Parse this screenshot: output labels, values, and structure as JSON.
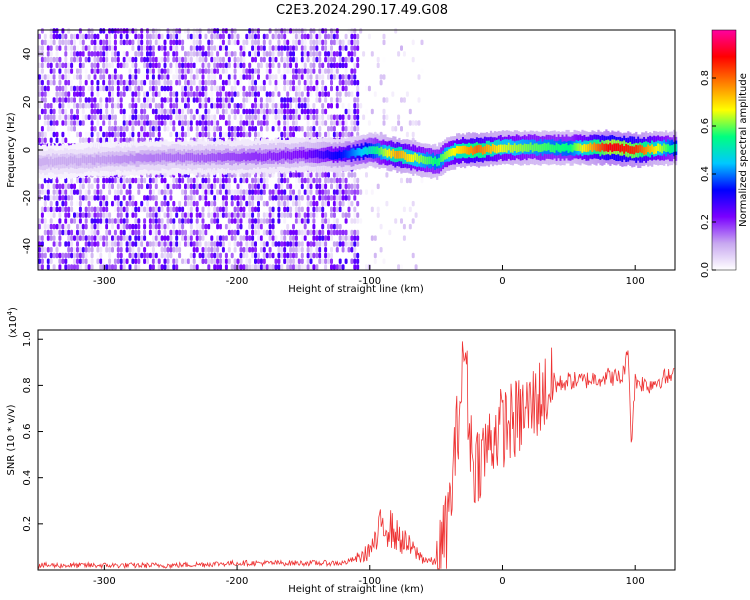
{
  "title": "C2E3.2024.290.17.49.G08",
  "chart_data": [
    {
      "type": "heatmap",
      "title": "C2E3.2024.290.17.49.G08",
      "xlabel": "Height of straight line (km)",
      "ylabel": "Frequency (Hz)",
      "xlim": [
        -350,
        130
      ],
      "ylim": [
        -50,
        50
      ],
      "x_ticks": [
        -300,
        -200,
        -100,
        0,
        100
      ],
      "y_ticks": [
        -40,
        -20,
        0,
        20,
        40
      ],
      "colorbar": {
        "label": "Normalized spectral amplitude",
        "range": [
          0,
          1
        ],
        "ticks": [
          0.0,
          0.2,
          0.4,
          0.6,
          0.8
        ],
        "colormap": [
          "#ffffff",
          "#c8a8f0",
          "#7a00ff",
          "#0000ff",
          "#00c8ff",
          "#00ff80",
          "#ffff00",
          "#ff8000",
          "#ff0000",
          "#ff00a0"
        ]
      },
      "ridge": {
        "x": [
          -350,
          -300,
          -250,
          -200,
          -150,
          -120,
          -100,
          -80,
          -60,
          -50,
          -40,
          -30,
          -20,
          0,
          20,
          50,
          80,
          100,
          130
        ],
        "frequency_hz": [
          -5,
          -4,
          -3,
          -3,
          -2,
          -2,
          0,
          -2,
          -4,
          -5,
          -1,
          0,
          0,
          1,
          1,
          1,
          1,
          0,
          1
        ],
        "amplitude": [
          0.1,
          0.12,
          0.15,
          0.18,
          0.22,
          0.35,
          0.5,
          0.75,
          0.6,
          0.55,
          0.65,
          0.72,
          0.8,
          0.65,
          0.6,
          0.55,
          0.9,
          0.85,
          0.5
        ]
      },
      "noise_region_x": [
        -350,
        -110
      ]
    },
    {
      "type": "line",
      "xlabel": "Height of straight line (km)",
      "ylabel": "SNR (10 * v/v)",
      "yscale_label": "(x10",
      "yscale_exp": "4",
      "ylabel_close": ")",
      "xlim": [
        -350,
        130
      ],
      "ylim": [
        0,
        1.04
      ],
      "x_ticks": [
        -300,
        -200,
        -100,
        0,
        100
      ],
      "y_ticks": [
        0.2,
        0.4,
        0.6,
        0.8,
        1.0
      ],
      "color": "#ee3333",
      "series": [
        {
          "x": [
            -350,
            -300,
            -250,
            -200,
            -150,
            -120,
            -105,
            -95,
            -90,
            -80,
            -70,
            -60,
            -50,
            -45,
            -40,
            -35,
            -30,
            -28,
            -26,
            -22,
            -15,
            -10,
            -5,
            0,
            10,
            20,
            30,
            40,
            50,
            60,
            70,
            80,
            90,
            95,
            97,
            100,
            110,
            120,
            130
          ],
          "values": [
            0.02,
            0.02,
            0.02,
            0.03,
            0.03,
            0.03,
            0.06,
            0.12,
            0.22,
            0.15,
            0.1,
            0.05,
            0.03,
            0.1,
            0.25,
            0.55,
            0.85,
            1.0,
            0.7,
            0.45,
            0.5,
            0.55,
            0.6,
            0.62,
            0.65,
            0.7,
            0.76,
            0.8,
            0.82,
            0.82,
            0.83,
            0.84,
            0.83,
            0.95,
            0.55,
            0.82,
            0.8,
            0.83,
            0.84
          ]
        }
      ]
    }
  ]
}
